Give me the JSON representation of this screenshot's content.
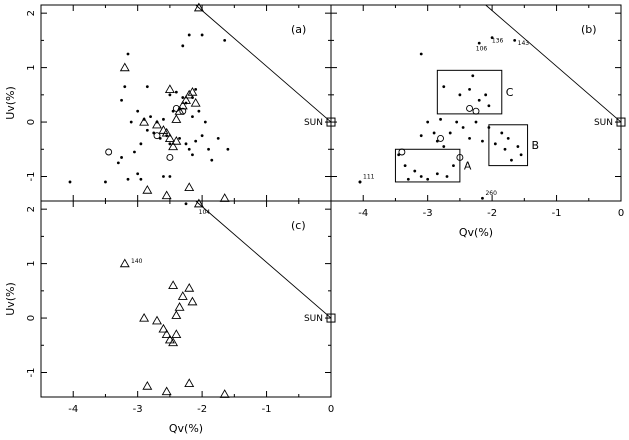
{
  "chart_data": [
    {
      "type": "scatter",
      "panel_label": "(a)",
      "ylabel": "Uv(%)",
      "xlabel": "",
      "xlim": [
        -4.5,
        0
      ],
      "ylim": [
        -1.45,
        2.15
      ],
      "x_ticks": [
        "-4",
        "-3",
        "-2",
        "-1",
        "0"
      ],
      "y_ticks": [
        "2",
        "1",
        "0",
        "-1"
      ],
      "show_x_ticklabels": false,
      "sun": {
        "label": "SUN",
        "x": 0,
        "y": 0
      },
      "line": {
        "x1": -2.1,
        "y1": 2.1,
        "x2": 0,
        "y2": 0
      },
      "series": [
        {
          "marker": "dot",
          "points": [
            [
              -4.05,
              -1.1
            ],
            [
              -3.5,
              -1.1
            ],
            [
              -3.15,
              -1.05
            ],
            [
              -3.3,
              -0.75
            ],
            [
              -3.25,
              -0.65
            ],
            [
              -3.0,
              -0.95
            ],
            [
              -2.95,
              -1.05
            ],
            [
              -2.6,
              -1.0
            ],
            [
              -2.5,
              -1.0
            ],
            [
              -3.05,
              -0.55
            ],
            [
              -2.95,
              -0.4
            ],
            [
              -2.85,
              -0.15
            ],
            [
              -2.75,
              -0.2
            ],
            [
              -2.65,
              -0.3
            ],
            [
              -2.55,
              -0.25
            ],
            [
              -2.5,
              -0.4
            ],
            [
              -2.35,
              -0.3
            ],
            [
              -2.25,
              -0.4
            ],
            [
              -2.2,
              -0.5
            ],
            [
              -2.15,
              -0.6
            ],
            [
              -2.1,
              -0.35
            ],
            [
              -2.0,
              -0.25
            ],
            [
              -1.9,
              -0.5
            ],
            [
              -1.85,
              -0.7
            ],
            [
              -1.75,
              -0.3
            ],
            [
              -1.6,
              -0.5
            ],
            [
              -3.1,
              0.0
            ],
            [
              -2.9,
              0.05
            ],
            [
              -2.8,
              0.1
            ],
            [
              -2.7,
              0.0
            ],
            [
              -2.6,
              0.05
            ],
            [
              -2.45,
              0.2
            ],
            [
              -2.35,
              0.25
            ],
            [
              -2.25,
              0.35
            ],
            [
              -2.15,
              0.1
            ],
            [
              -2.05,
              0.2
            ],
            [
              -1.95,
              0.0
            ],
            [
              -3.0,
              0.2
            ],
            [
              -2.5,
              0.5
            ],
            [
              -2.4,
              0.55
            ],
            [
              -2.3,
              0.45
            ],
            [
              -2.15,
              0.45
            ],
            [
              -3.25,
              0.4
            ],
            [
              -3.2,
              0.65
            ],
            [
              -2.85,
              0.65
            ],
            [
              -3.15,
              1.25
            ],
            [
              -2.3,
              1.4
            ],
            [
              -2.2,
              1.6
            ],
            [
              -2.0,
              1.6
            ],
            [
              -1.65,
              1.5
            ],
            [
              -2.25,
              -1.5
            ],
            [
              -2.1,
              0.6
            ]
          ]
        },
        {
          "marker": "triangle",
          "points": [
            [
              -3.2,
              1.0
            ],
            [
              -2.9,
              0.0
            ],
            [
              -2.7,
              -0.05
            ],
            [
              -2.6,
              -0.15
            ],
            [
              -2.55,
              -0.2
            ],
            [
              -2.5,
              -0.3
            ],
            [
              -2.45,
              -0.45
            ],
            [
              -2.4,
              -0.35
            ],
            [
              -2.4,
              0.05
            ],
            [
              -2.35,
              0.2
            ],
            [
              -2.3,
              0.3
            ],
            [
              -2.25,
              0.4
            ],
            [
              -2.2,
              0.5
            ],
            [
              -2.15,
              0.55
            ],
            [
              -2.1,
              0.35
            ],
            [
              -2.5,
              0.6
            ],
            [
              -2.85,
              -1.25
            ],
            [
              -2.55,
              -1.35
            ],
            [
              -2.2,
              -1.2
            ],
            [
              -1.65,
              -1.4
            ],
            [
              -2.05,
              2.1
            ]
          ]
        },
        {
          "marker": "circle",
          "points": [
            [
              -3.45,
              -0.55
            ],
            [
              -2.7,
              -0.25
            ],
            [
              -2.5,
              -0.65
            ],
            [
              -2.4,
              0.25
            ],
            [
              -2.3,
              0.2
            ]
          ]
        }
      ]
    },
    {
      "type": "scatter",
      "panel_label": "(b)",
      "ylabel": "",
      "xlabel": "Qv(%)",
      "xlim": [
        -4.5,
        0
      ],
      "ylim": [
        -1.45,
        2.15
      ],
      "x_ticks": [
        "-4",
        "-3",
        "-2",
        "-1",
        "0"
      ],
      "y_ticks": [],
      "show_x_ticklabels": true,
      "sun": {
        "label": "SUN",
        "x": 0,
        "y": 0
      },
      "line": {
        "x1": -2.1,
        "y1": 2.1,
        "x2": 0,
        "y2": 0
      },
      "regions": [
        {
          "label": "A",
          "x0": -3.5,
          "x1": -2.5,
          "y0": -1.1,
          "y1": -0.5
        },
        {
          "label": "B",
          "x0": -2.05,
          "x1": -1.45,
          "y0": -0.8,
          "y1": -0.05
        },
        {
          "label": "C",
          "x0": -2.85,
          "x1": -1.85,
          "y0": 0.15,
          "y1": 0.95
        }
      ],
      "point_labels": [
        {
          "text": "136",
          "x": -2.05,
          "y": 1.5
        },
        {
          "text": "143",
          "x": -1.65,
          "y": 1.45
        },
        {
          "text": "106",
          "x": -2.3,
          "y": 1.35
        },
        {
          "text": "111",
          "x": -4.05,
          "y": -1.0
        },
        {
          "text": "260",
          "x": -2.15,
          "y": -1.3
        }
      ],
      "series": [
        {
          "marker": "dot",
          "points": [
            [
              -4.05,
              -1.1
            ],
            [
              -3.45,
              -0.6
            ],
            [
              -3.35,
              -0.8
            ],
            [
              -3.2,
              -0.9
            ],
            [
              -3.1,
              -1.0
            ],
            [
              -3.0,
              -1.05
            ],
            [
              -2.85,
              -0.95
            ],
            [
              -2.7,
              -1.0
            ],
            [
              -2.6,
              -0.8
            ],
            [
              -3.3,
              -1.05
            ],
            [
              -1.95,
              -0.4
            ],
            [
              -1.85,
              -0.2
            ],
            [
              -1.8,
              -0.5
            ],
            [
              -1.7,
              -0.7
            ],
            [
              -1.6,
              -0.45
            ],
            [
              -1.55,
              -0.6
            ],
            [
              -1.75,
              -0.3
            ],
            [
              -2.75,
              0.65
            ],
            [
              -2.5,
              0.5
            ],
            [
              -2.3,
              0.85
            ],
            [
              -2.2,
              0.4
            ],
            [
              -2.1,
              0.5
            ],
            [
              -2.05,
              0.3
            ],
            [
              -2.35,
              0.6
            ],
            [
              -3.0,
              0.0
            ],
            [
              -2.9,
              -0.2
            ],
            [
              -2.8,
              0.05
            ],
            [
              -2.65,
              -0.2
            ],
            [
              -2.55,
              0.0
            ],
            [
              -2.45,
              -0.1
            ],
            [
              -2.35,
              -0.3
            ],
            [
              -2.25,
              0.0
            ],
            [
              -2.15,
              -0.35
            ],
            [
              -2.05,
              -0.1
            ],
            [
              -3.1,
              -0.25
            ],
            [
              -2.75,
              -0.45
            ],
            [
              -3.1,
              1.25
            ],
            [
              -2.2,
              1.45
            ],
            [
              -2.0,
              1.55
            ],
            [
              -1.65,
              1.5
            ],
            [
              -2.15,
              -1.4
            ],
            [
              -4.05,
              -1.1
            ],
            [
              -2.85,
              -0.35
            ]
          ]
        },
        {
          "marker": "circle",
          "points": [
            [
              -3.4,
              -0.55
            ],
            [
              -2.8,
              -0.3
            ],
            [
              -2.5,
              -0.65
            ],
            [
              -2.35,
              0.25
            ],
            [
              -2.25,
              0.2
            ]
          ]
        }
      ]
    },
    {
      "type": "scatter",
      "panel_label": "(c)",
      "ylabel": "Uv(%)",
      "xlabel": "Qv(%)",
      "xlim": [
        -4.5,
        0
      ],
      "ylim": [
        -1.45,
        2.15
      ],
      "x_ticks": [
        "-4",
        "-3",
        "-2",
        "-1",
        "0"
      ],
      "y_ticks": [
        "2",
        "1",
        "0",
        "-1"
      ],
      "show_x_ticklabels": true,
      "sun": {
        "label": "SUN",
        "x": 0,
        "y": 0
      },
      "line": {
        "x1": -2.1,
        "y1": 2.1,
        "x2": 0,
        "y2": 0
      },
      "point_labels": [
        {
          "text": "140",
          "x": -3.15,
          "y": 1.05
        },
        {
          "text": "104",
          "x": -2.1,
          "y": 1.95
        }
      ],
      "series": [
        {
          "marker": "triangle",
          "points": [
            [
              -3.2,
              1.0
            ],
            [
              -2.9,
              0.0
            ],
            [
              -2.7,
              -0.05
            ],
            [
              -2.6,
              -0.2
            ],
            [
              -2.55,
              -0.3
            ],
            [
              -2.5,
              -0.4
            ],
            [
              -2.45,
              -0.45
            ],
            [
              -2.4,
              -0.3
            ],
            [
              -2.4,
              0.05
            ],
            [
              -2.35,
              0.2
            ],
            [
              -2.3,
              0.4
            ],
            [
              -2.2,
              0.55
            ],
            [
              -2.15,
              0.3
            ],
            [
              -2.45,
              0.6
            ],
            [
              -2.85,
              -1.25
            ],
            [
              -2.55,
              -1.35
            ],
            [
              -2.2,
              -1.2
            ],
            [
              -1.65,
              -1.4
            ],
            [
              -2.05,
              2.1
            ]
          ]
        }
      ]
    }
  ]
}
